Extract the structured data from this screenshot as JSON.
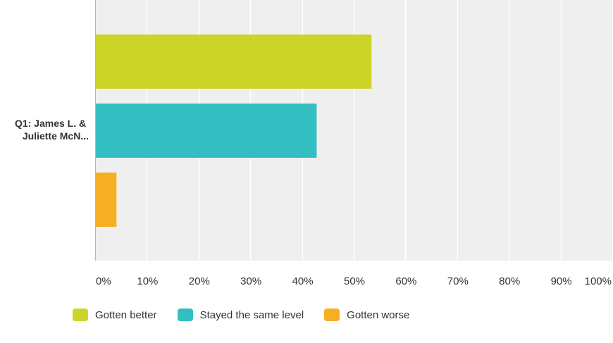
{
  "chart_data": {
    "type": "bar",
    "orientation": "horizontal",
    "categories": [
      "Q1: James L. & Juliette McN..."
    ],
    "category_label_lines": [
      "Q1: James L. &",
      "Juliette McN..."
    ],
    "series": [
      {
        "name": "Gotten better",
        "color": "#cdd428",
        "values": [
          53.3
        ]
      },
      {
        "name": "Stayed the same level",
        "color": "#33bec1",
        "values": [
          42.7
        ]
      },
      {
        "name": "Gotten worse",
        "color": "#f7ae22",
        "values": [
          4.0
        ]
      }
    ],
    "xlim": [
      0,
      100
    ],
    "x_ticks": [
      "0%",
      "10%",
      "20%",
      "30%",
      "40%",
      "50%",
      "60%",
      "70%",
      "80%",
      "90%",
      "100%"
    ],
    "grid": true,
    "legend_position": "bottom",
    "plot_background": "#efefef"
  }
}
